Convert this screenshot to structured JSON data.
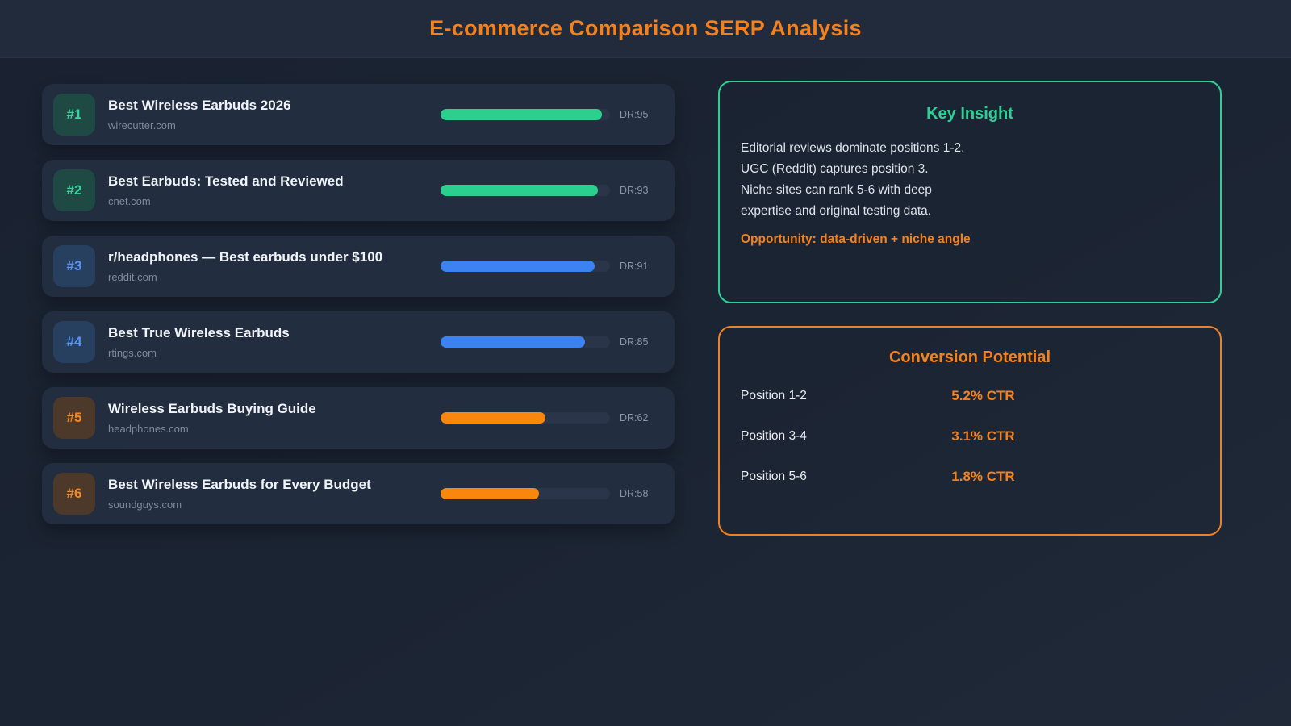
{
  "header": {
    "title": "E-commerce Comparison SERP Analysis"
  },
  "serp_results": [
    {
      "rank": "#1",
      "title": "Best Wireless Earbuds 2026",
      "domain": "wirecutter.com",
      "dr": 95,
      "dr_label": "DR:95",
      "color": "green"
    },
    {
      "rank": "#2",
      "title": "Best Earbuds: Tested and Reviewed",
      "domain": "cnet.com",
      "dr": 93,
      "dr_label": "DR:93",
      "color": "green"
    },
    {
      "rank": "#3",
      "title": "r/headphones — Best earbuds under $100",
      "domain": "reddit.com",
      "dr": 91,
      "dr_label": "DR:91",
      "color": "blue"
    },
    {
      "rank": "#4",
      "title": "Best True Wireless Earbuds",
      "domain": "rtings.com",
      "dr": 85,
      "dr_label": "DR:85",
      "color": "blue"
    },
    {
      "rank": "#5",
      "title": "Wireless Earbuds Buying Guide",
      "domain": "headphones.com",
      "dr": 62,
      "dr_label": "DR:62",
      "color": "orange"
    },
    {
      "rank": "#6",
      "title": "Best Wireless Earbuds for Every Budget",
      "domain": "soundguys.com",
      "dr": 58,
      "dr_label": "DR:58",
      "color": "orange"
    }
  ],
  "key_insight": {
    "title": "Key Insight",
    "lines": [
      "Editorial reviews dominate positions 1-2.",
      "UGC (Reddit) captures position 3.",
      "Niche sites can rank 5-6 with deep",
      "expertise and original testing data."
    ],
    "opportunity": "Opportunity: data-driven + niche angle"
  },
  "conversion_potential": {
    "title": "Conversion Potential",
    "rows": [
      {
        "label": "Position 1-2",
        "value": "5.2% CTR"
      },
      {
        "label": "Position 3-4",
        "value": "3.1% CTR"
      },
      {
        "label": "Position 5-6",
        "value": "1.8% CTR"
      }
    ]
  },
  "colors": {
    "accent_orange": "#f5811d",
    "accent_green": "#2fd096",
    "accent_blue": "#3d82f2",
    "page_background": "#1b2432",
    "row_background": "#222d3f"
  }
}
